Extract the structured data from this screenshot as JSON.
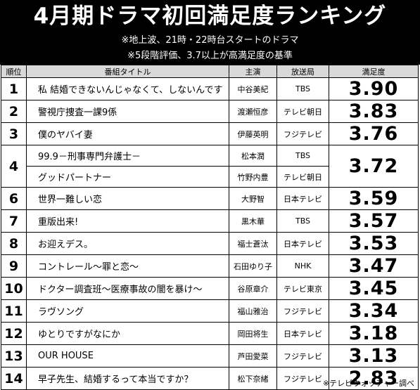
{
  "header": {
    "title": "4月期ドラマ初回満足度ランキング",
    "note1": "※地上波、21時・22時台スタートのドラマ",
    "note2": "※5段階評価、3.7以上が高満足度の基準"
  },
  "columns": {
    "rank": "順位",
    "title": "番組タイトル",
    "lead": "主演",
    "station": "放送局",
    "score": "満足度"
  },
  "rows": [
    {
      "rank": "1",
      "title": "私 結婚できないんじゃなくて、しないんです",
      "lead": "中谷美紀",
      "station": "TBS",
      "score": "3.90"
    },
    {
      "rank": "2",
      "title": "警視庁捜査一課9係",
      "lead": "渡瀬恒彦",
      "station": "テレビ朝日",
      "score": "3.83"
    },
    {
      "rank": "3",
      "title": "僕のヤバイ妻",
      "lead": "伊藤英明",
      "station": "フジテレビ",
      "score": "3.76"
    },
    {
      "rank": "4",
      "title": "99.9－刑事専門弁護士－",
      "lead": "松本潤",
      "station": "TBS",
      "score": "3.72",
      "title2": "グッドパートナー",
      "lead2": "竹野内豊",
      "station2": "テレビ朝日"
    },
    {
      "rank": "6",
      "title": "世界一難しい恋",
      "lead": "大野智",
      "station": "日本テレビ",
      "score": "3.59"
    },
    {
      "rank": "7",
      "title": "重版出来!",
      "lead": "黒木華",
      "station": "TBS",
      "score": "3.57"
    },
    {
      "rank": "8",
      "title": "お迎えデス。",
      "lead": "福士蒼汰",
      "station": "日本テレビ",
      "score": "3.53"
    },
    {
      "rank": "9",
      "title": "コントレール～罪と恋～",
      "lead": "石田ゆり子",
      "station": "NHK",
      "score": "3.47"
    },
    {
      "rank": "10",
      "title": "ドクター調査班～医療事故の闇を暴け～",
      "lead": "谷原章介",
      "station": "テレビ東京",
      "score": "3.45"
    },
    {
      "rank": "11",
      "title": "ラヴソング",
      "lead": "福山雅治",
      "station": "フジテレビ",
      "score": "3.34"
    },
    {
      "rank": "12",
      "title": "ゆとりですがなにか",
      "lead": "岡田将生",
      "station": "日本テレビ",
      "score": "3.18"
    },
    {
      "rank": "13",
      "title": "OUR HOUSE",
      "lead": "芦田愛菜",
      "station": "フジテレビ",
      "score": "3.13"
    },
    {
      "rank": "14",
      "title": "早子先生、結婚するって本当ですか？",
      "lead": "松下奈緒",
      "station": "フジテレビ",
      "score": "2.83"
    }
  ],
  "footer": "※テレビウォッチャー調べ"
}
